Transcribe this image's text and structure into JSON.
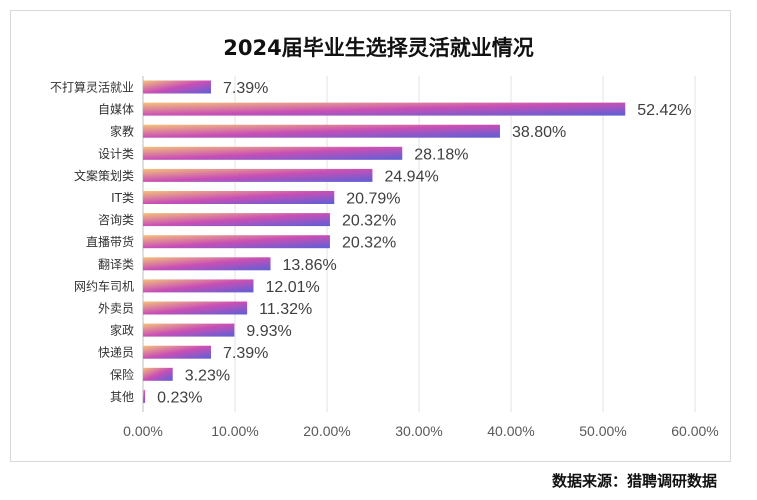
{
  "chart_data": {
    "type": "bar",
    "orientation": "horizontal",
    "title": "2024届毕业生选择灵活就业情况",
    "categories": [
      "不打算灵活就业",
      "自媒体",
      "家教",
      "设计类",
      "文案策划类",
      "IT类",
      "咨询类",
      "直播带货",
      "翻译类",
      "网约车司机",
      "外卖员",
      "家政",
      "快递员",
      "保险",
      "其他"
    ],
    "values": [
      7.39,
      52.42,
      38.8,
      28.18,
      24.94,
      20.79,
      20.32,
      20.32,
      13.86,
      12.01,
      11.32,
      9.93,
      7.39,
      3.23,
      0.23
    ],
    "data_labels": [
      "7.39%",
      "52.42%",
      "38.80%",
      "28.18%",
      "24.94%",
      "20.79%",
      "20.32%",
      "20.32%",
      "13.86%",
      "12.01%",
      "11.32%",
      "9.93%",
      "7.39%",
      "3.23%",
      "0.23%"
    ],
    "xlim": [
      0,
      60
    ],
    "x_ticks": [
      "0.00%",
      "10.00%",
      "20.00%",
      "30.00%",
      "40.00%",
      "50.00%",
      "60.00%"
    ],
    "grid": "vertical",
    "legend": "none",
    "bar_gradient": [
      "#f4c27a",
      "#c94fb5",
      "#5b5fd8"
    ]
  },
  "source": "数据来源：猎聘调研数据"
}
